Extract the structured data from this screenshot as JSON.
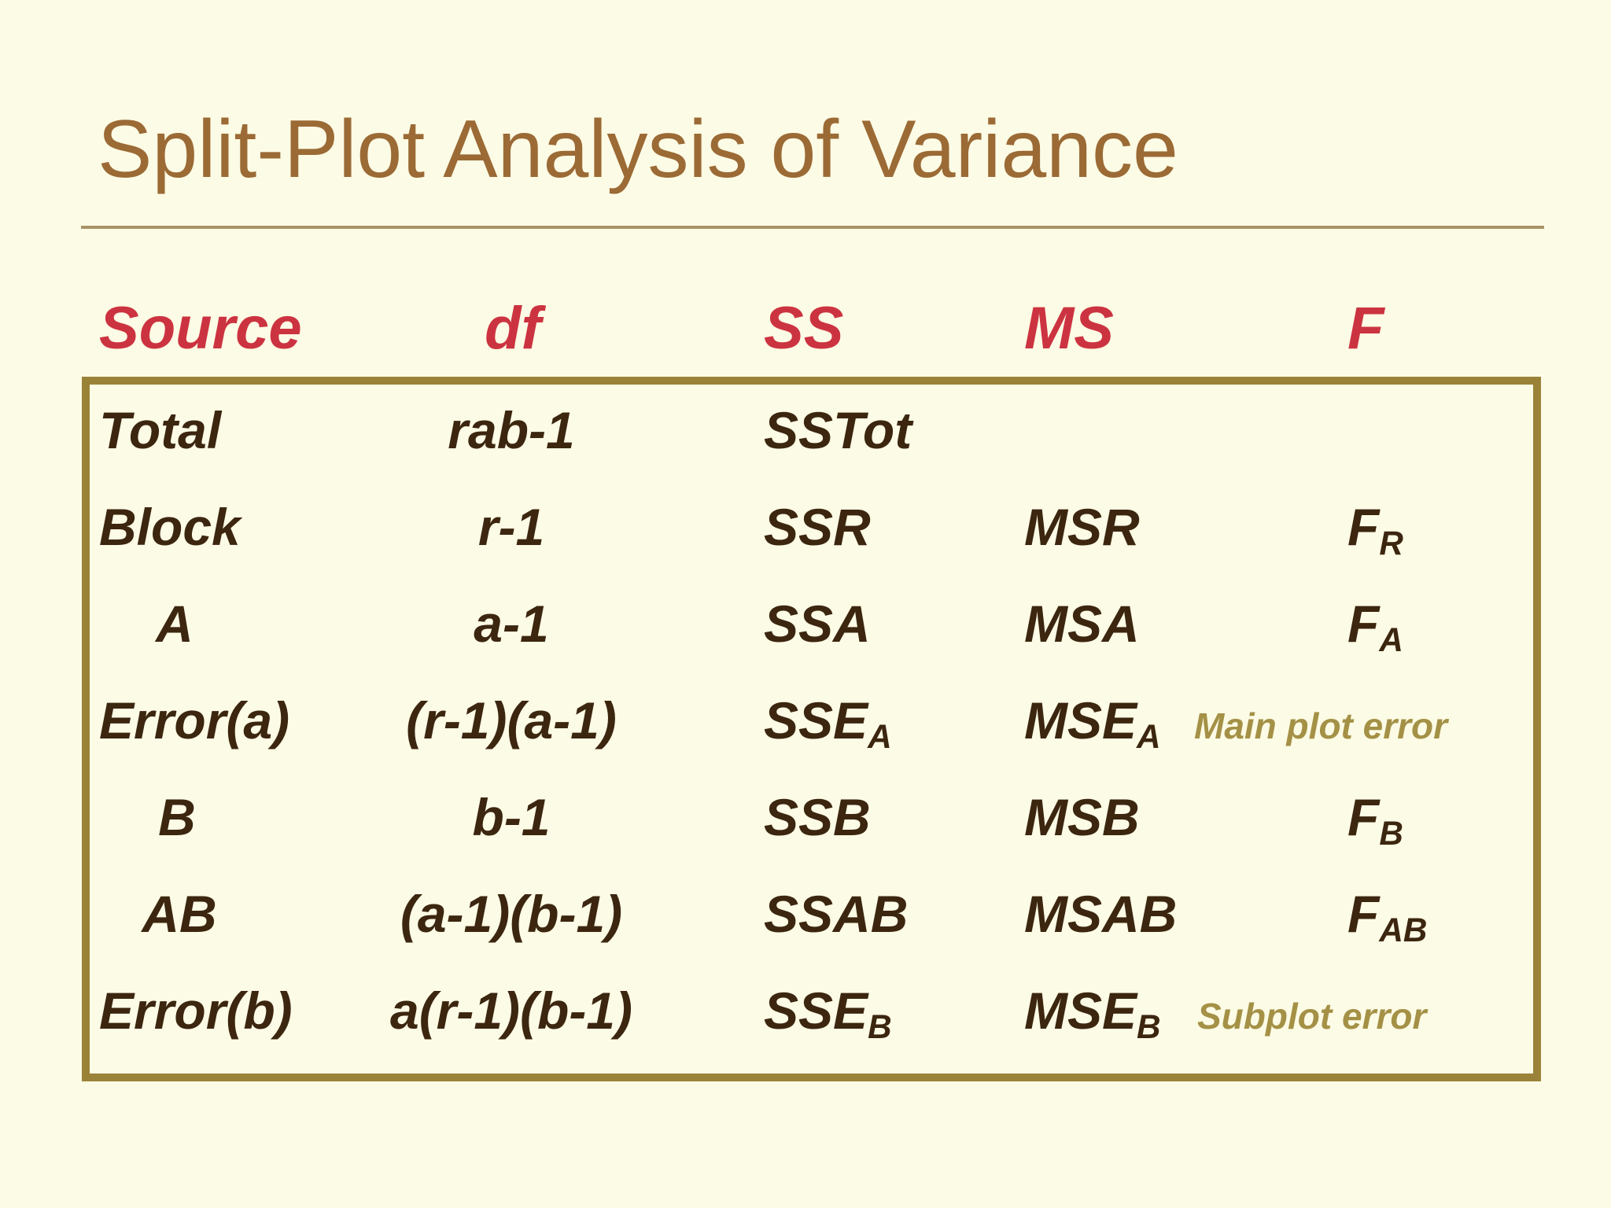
{
  "title": "Split-Plot Analysis of Variance",
  "columns": {
    "source": "Source",
    "df": "df",
    "ss": "SS",
    "ms": "MS",
    "f": "F"
  },
  "rows": [
    {
      "source": "Total",
      "df": "rab-1",
      "ss": "SSTot",
      "ss_sub": "",
      "ms": "",
      "ms_sub": "",
      "f": "",
      "f_sub": "",
      "note": ""
    },
    {
      "source": "Block",
      "df": "r-1",
      "ss": "SSR",
      "ss_sub": "",
      "ms": "MSR",
      "ms_sub": "",
      "f": "F",
      "f_sub": "R",
      "note": ""
    },
    {
      "source": "A",
      "df": "a-1",
      "ss": "SSA",
      "ss_sub": "",
      "ms": "MSA",
      "ms_sub": "",
      "f": "F",
      "f_sub": "A",
      "note": ""
    },
    {
      "source": "Error(a)",
      "df": "(r-1)(a-1)",
      "ss": "SSE",
      "ss_sub": "A",
      "ms": "MSE",
      "ms_sub": "A",
      "f": "",
      "f_sub": "",
      "note": "Main plot error"
    },
    {
      "source": "B",
      "df": "b-1",
      "ss": "SSB",
      "ss_sub": "",
      "ms": "MSB",
      "ms_sub": "",
      "f": "F",
      "f_sub": "B",
      "note": ""
    },
    {
      "source": "AB",
      "df": "(a-1)(b-1)",
      "ss": "SSAB",
      "ss_sub": "",
      "ms": "MSAB",
      "ms_sub": "",
      "f": "F",
      "f_sub": "AB",
      "note": ""
    },
    {
      "source": "Error(b)",
      "df": "a(r-1)(b-1)",
      "ss": "SSE",
      "ss_sub": "B",
      "ms": "MSE",
      "ms_sub": "B",
      "f": "",
      "f_sub": "",
      "note": "Subplot error"
    }
  ],
  "colors": {
    "background": "#fcfbe5",
    "title": "#9b6a35",
    "header": "#cc3340",
    "body_text": "#3c2610",
    "note": "#a49146",
    "box_border": "#9a8338",
    "title_rule": "#a89468"
  }
}
